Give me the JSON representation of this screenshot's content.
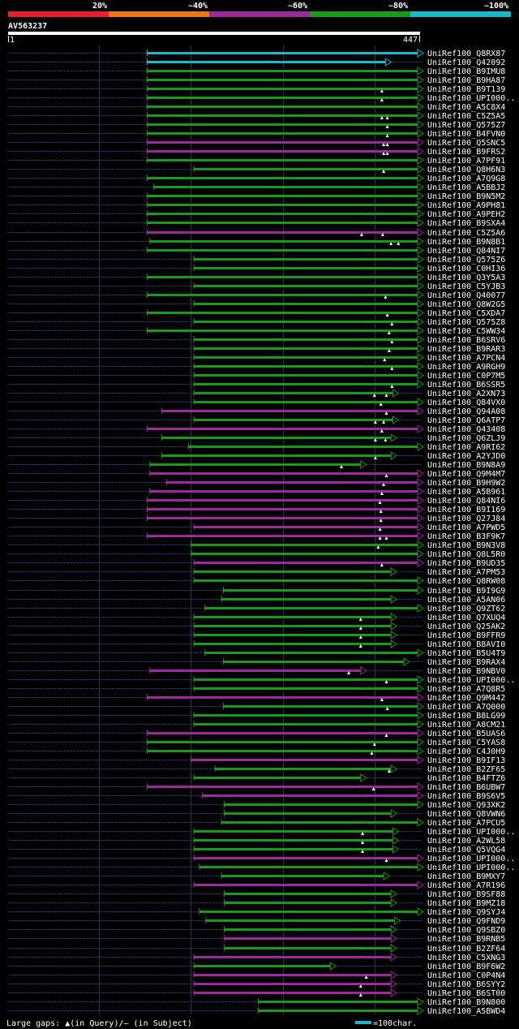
{
  "colors": {
    "background": "#000000",
    "identity_20": "#e8202a",
    "identity_40": "#e8781e",
    "identity_60": "#9b2b9b",
    "identity_80": "#1a9a1a",
    "identity_100": "#1ab8c8",
    "query_dashed": "#2a3570",
    "grid": "#1e3560",
    "text": "#ffffff"
  },
  "scale_labels": [
    "20%",
    "~40%",
    "~60%",
    "~80%",
    "~100%"
  ],
  "legend": {
    "gaps_text": "Large gaps: ▲(in Query)/— (in Subject)",
    "scale_text": "=100char."
  },
  "chart_data": {
    "type": "alignment-map",
    "title": "AV563237",
    "query_length": 447,
    "x_axis_labels": [
      "1",
      "447"
    ],
    "grid_positions": [
      100,
      200,
      300,
      400
    ],
    "hits": [
      {
        "id": "UniRef100_Q8RX87",
        "start": 152,
        "end": 447,
        "color": "cyan",
        "gaps": []
      },
      {
        "id": "UniRef100_Q42092",
        "start": 152,
        "end": 412,
        "color": "cyan",
        "gaps": []
      },
      {
        "id": "UniRef100_B9IMU8",
        "start": 152,
        "end": 447,
        "color": "green",
        "gaps": []
      },
      {
        "id": "UniRef100_B9HA87",
        "start": 152,
        "end": 447,
        "color": "green",
        "gaps": []
      },
      {
        "id": "UniRef100_B9T139",
        "start": 152,
        "end": 447,
        "color": "green",
        "gaps": [
          408
        ]
      },
      {
        "id": "UniRef100_UPI000..",
        "start": 152,
        "end": 447,
        "color": "green",
        "gaps": [
          408
        ]
      },
      {
        "id": "UniRef100_A5C8X4",
        "start": 152,
        "end": 447,
        "color": "green",
        "gaps": []
      },
      {
        "id": "UniRef100_C5Z5A5",
        "start": 152,
        "end": 447,
        "color": "green",
        "gaps": [
          408,
          414
        ]
      },
      {
        "id": "UniRef100_Q575Z7",
        "start": 152,
        "end": 447,
        "color": "green",
        "gaps": [
          414
        ]
      },
      {
        "id": "UniRef100_B4FVN0",
        "start": 152,
        "end": 447,
        "color": "green",
        "gaps": [
          414
        ]
      },
      {
        "id": "UniRef100_Q5SNC5",
        "start": 152,
        "end": 447,
        "color": "purple",
        "gaps": [
          410,
          414
        ]
      },
      {
        "id": "UniRef100_B9FRS2",
        "start": 152,
        "end": 447,
        "color": "purple",
        "gaps": [
          410,
          414
        ]
      },
      {
        "id": "UniRef100_A7PF91",
        "start": 152,
        "end": 447,
        "color": "green",
        "gaps": []
      },
      {
        "id": "UniRef100_Q8H6N3",
        "start": 203,
        "end": 447,
        "color": "green",
        "gaps": [
          410
        ]
      },
      {
        "id": "UniRef100_A7Q9G8",
        "start": 152,
        "end": 447,
        "color": "green",
        "gaps": []
      },
      {
        "id": "UniRef100_A5BBJ2",
        "start": 159,
        "end": 447,
        "color": "green",
        "gaps": []
      },
      {
        "id": "UniRef100_B9N5M2",
        "start": 152,
        "end": 447,
        "color": "green",
        "gaps": []
      },
      {
        "id": "UniRef100_A9PH81",
        "start": 152,
        "end": 447,
        "color": "green",
        "gaps": []
      },
      {
        "id": "UniRef100_A9PEH2",
        "start": 152,
        "end": 447,
        "color": "green",
        "gaps": []
      },
      {
        "id": "UniRef100_B9SXA4",
        "start": 152,
        "end": 447,
        "color": "green",
        "gaps": []
      },
      {
        "id": "UniRef100_C5Z5A6",
        "start": 152,
        "end": 447,
        "color": "purple",
        "gaps": [
          386,
          409
        ]
      },
      {
        "id": "UniRef100_B9N8B1",
        "start": 155,
        "end": 447,
        "color": "green",
        "gaps": [
          418,
          426
        ]
      },
      {
        "id": "UniRef100_Q84NI7",
        "start": 152,
        "end": 447,
        "color": "green",
        "gaps": []
      },
      {
        "id": "UniRef100_Q575Z6",
        "start": 203,
        "end": 447,
        "color": "green",
        "gaps": []
      },
      {
        "id": "UniRef100_C0HI36",
        "start": 203,
        "end": 447,
        "color": "green",
        "gaps": []
      },
      {
        "id": "UniRef100_Q3Y5A3",
        "start": 152,
        "end": 447,
        "color": "green",
        "gaps": []
      },
      {
        "id": "UniRef100_C5YJB3",
        "start": 203,
        "end": 447,
        "color": "green",
        "gaps": []
      },
      {
        "id": "UniRef100_Q40077",
        "start": 152,
        "end": 447,
        "color": "green",
        "gaps": [
          412
        ]
      },
      {
        "id": "UniRef100_Q8W2G5",
        "start": 203,
        "end": 447,
        "color": "green",
        "gaps": []
      },
      {
        "id": "UniRef100_C5XDA7",
        "start": 152,
        "end": 447,
        "color": "green",
        "gaps": [
          414
        ]
      },
      {
        "id": "UniRef100_Q575Z8",
        "start": 203,
        "end": 447,
        "color": "green",
        "gaps": [
          419
        ]
      },
      {
        "id": "UniRef100_C5WW34",
        "start": 152,
        "end": 447,
        "color": "green",
        "gaps": [
          416
        ]
      },
      {
        "id": "UniRef100_B6SRV6",
        "start": 203,
        "end": 447,
        "color": "green",
        "gaps": [
          419
        ]
      },
      {
        "id": "UniRef100_B9RAR3",
        "start": 203,
        "end": 447,
        "color": "green",
        "gaps": [
          416
        ]
      },
      {
        "id": "UniRef100_A7PCN4",
        "start": 203,
        "end": 447,
        "color": "green",
        "gaps": [
          411
        ]
      },
      {
        "id": "UniRef100_A9RGH9",
        "start": 203,
        "end": 447,
        "color": "green",
        "gaps": [
          419
        ]
      },
      {
        "id": "UniRef100_C0P7M5",
        "start": 203,
        "end": 447,
        "color": "green",
        "gaps": []
      },
      {
        "id": "UniRef100_B6SSR5",
        "start": 203,
        "end": 447,
        "color": "green",
        "gaps": [
          419
        ]
      },
      {
        "id": "UniRef100_A2XN73",
        "start": 203,
        "end": 420,
        "color": "green",
        "gaps": [
          400,
          413
        ]
      },
      {
        "id": "UniRef100_Q84VX0",
        "start": 203,
        "end": 447,
        "color": "green",
        "gaps": [
          407
        ]
      },
      {
        "id": "UniRef100_Q94A08",
        "start": 168,
        "end": 447,
        "color": "purple",
        "gaps": [
          413
        ]
      },
      {
        "id": "UniRef100_Q6ATP7",
        "start": 203,
        "end": 420,
        "color": "green",
        "gaps": [
          401,
          410
        ]
      },
      {
        "id": "UniRef100_Q43408",
        "start": 152,
        "end": 447,
        "color": "purple",
        "gaps": [
          408
        ]
      },
      {
        "id": "UniRef100_Q6ZLJ9",
        "start": 168,
        "end": 418,
        "color": "green",
        "gaps": [
          401,
          412
        ]
      },
      {
        "id": "UniRef100_A9RI62",
        "start": 197,
        "end": 447,
        "color": "green",
        "gaps": []
      },
      {
        "id": "UniRef100_A2YJD0",
        "start": 168,
        "end": 418,
        "color": "green",
        "gaps": [
          401
        ]
      },
      {
        "id": "UniRef100_B9N8A9",
        "start": 155,
        "end": 385,
        "color": "green",
        "gaps": [
          364
        ]
      },
      {
        "id": "UniRef100_Q9M4M7",
        "start": 155,
        "end": 447,
        "color": "purple",
        "gaps": [
          413
        ]
      },
      {
        "id": "UniRef100_B9H9W2",
        "start": 173,
        "end": 447,
        "color": "purple",
        "gaps": [
          410
        ]
      },
      {
        "id": "UniRef100_A5B961",
        "start": 155,
        "end": 447,
        "color": "purple",
        "gaps": [
          408
        ]
      },
      {
        "id": "UniRef100_Q84NI6",
        "start": 152,
        "end": 447,
        "color": "purple",
        "gaps": [
          406
        ]
      },
      {
        "id": "UniRef100_B9I169",
        "start": 152,
        "end": 447,
        "color": "purple",
        "gaps": [
          407
        ]
      },
      {
        "id": "UniRef100_Q27J84",
        "start": 152,
        "end": 447,
        "color": "purple",
        "gaps": [
          407
        ]
      },
      {
        "id": "UniRef100_A7PWD5",
        "start": 203,
        "end": 447,
        "color": "purple",
        "gaps": [
          406
        ]
      },
      {
        "id": "UniRef100_B3F9K7",
        "start": 152,
        "end": 447,
        "color": "purple",
        "gaps": [
          406,
          413
        ]
      },
      {
        "id": "UniRef100_B9N3V8",
        "start": 200,
        "end": 447,
        "color": "green",
        "gaps": [
          404
        ]
      },
      {
        "id": "UniRef100_Q8L5R0",
        "start": 200,
        "end": 447,
        "color": "green",
        "gaps": []
      },
      {
        "id": "UniRef100_B9UD35",
        "start": 203,
        "end": 447,
        "color": "purple",
        "gaps": [
          408
        ]
      },
      {
        "id": "UniRef100_A7PM53",
        "start": 203,
        "end": 418,
        "color": "green",
        "gaps": []
      },
      {
        "id": "UniRef100_Q8RW08",
        "start": 203,
        "end": 447,
        "color": "green",
        "gaps": []
      },
      {
        "id": "UniRef100_B9I9G9",
        "start": 235,
        "end": 447,
        "color": "green",
        "gaps": []
      },
      {
        "id": "UniRef100_A5AN06",
        "start": 233,
        "end": 418,
        "color": "green",
        "gaps": []
      },
      {
        "id": "UniRef100_Q9ZT62",
        "start": 215,
        "end": 447,
        "color": "green",
        "gaps": []
      },
      {
        "id": "UniRef100_Q7XUQ4",
        "start": 203,
        "end": 418,
        "color": "green",
        "gaps": [
          385
        ]
      },
      {
        "id": "UniRef100_Q25AK2",
        "start": 203,
        "end": 418,
        "color": "green",
        "gaps": [
          385
        ]
      },
      {
        "id": "UniRef100_B9FFR9",
        "start": 203,
        "end": 418,
        "color": "green",
        "gaps": [
          385
        ]
      },
      {
        "id": "UniRef100_B8AVI0",
        "start": 203,
        "end": 418,
        "color": "green",
        "gaps": [
          385
        ]
      },
      {
        "id": "UniRef100_B5U4T9",
        "start": 215,
        "end": 447,
        "color": "green",
        "gaps": []
      },
      {
        "id": "UniRef100_B9RAX4",
        "start": 235,
        "end": 432,
        "color": "green",
        "gaps": []
      },
      {
        "id": "UniRef100_B9NBV0",
        "start": 155,
        "end": 385,
        "color": "purple",
        "gaps": [
          372
        ]
      },
      {
        "id": "UniRef100_UPI000..",
        "start": 203,
        "end": 447,
        "color": "green",
        "gaps": [
          413
        ]
      },
      {
        "id": "UniRef100_A7Q8R5",
        "start": 203,
        "end": 447,
        "color": "green",
        "gaps": []
      },
      {
        "id": "UniRef100_Q9M442",
        "start": 152,
        "end": 447,
        "color": "purple",
        "gaps": [
          408
        ]
      },
      {
        "id": "UniRef100_A7Q000",
        "start": 235,
        "end": 447,
        "color": "green",
        "gaps": [
          414
        ]
      },
      {
        "id": "UniRef100_B8LG99",
        "start": 203,
        "end": 447,
        "color": "green",
        "gaps": []
      },
      {
        "id": "UniRef100_A8CM21",
        "start": 203,
        "end": 447,
        "color": "green",
        "gaps": []
      },
      {
        "id": "UniRef100_B5UAS6",
        "start": 152,
        "end": 447,
        "color": "purple",
        "gaps": [
          413
        ]
      },
      {
        "id": "UniRef100_C5YAS8",
        "start": 152,
        "end": 447,
        "color": "green",
        "gaps": [
          400
        ]
      },
      {
        "id": "UniRef100_C4J0H9",
        "start": 152,
        "end": 447,
        "color": "green",
        "gaps": [
          397
        ]
      },
      {
        "id": "UniRef100_B9IF13",
        "start": 200,
        "end": 447,
        "color": "purple",
        "gaps": []
      },
      {
        "id": "UniRef100_B2ZF65",
        "start": 226,
        "end": 418,
        "color": "green",
        "gaps": [
          416
        ]
      },
      {
        "id": "UniRef100_B4FTZ6",
        "start": 203,
        "end": 385,
        "color": "green",
        "gaps": []
      },
      {
        "id": "UniRef100_B6UBW7",
        "start": 152,
        "end": 447,
        "color": "purple",
        "gaps": [
          399
        ]
      },
      {
        "id": "UniRef100_B9S6V5",
        "start": 212,
        "end": 447,
        "color": "purple",
        "gaps": []
      },
      {
        "id": "UniRef100_Q93XK2",
        "start": 236,
        "end": 447,
        "color": "green",
        "gaps": []
      },
      {
        "id": "UniRef100_Q8VWN6",
        "start": 236,
        "end": 418,
        "color": "green",
        "gaps": []
      },
      {
        "id": "UniRef100_A7PCU5",
        "start": 233,
        "end": 447,
        "color": "green",
        "gaps": []
      },
      {
        "id": "UniRef100_UPI000..",
        "start": 203,
        "end": 420,
        "color": "green",
        "gaps": [
          387
        ]
      },
      {
        "id": "UniRef100_A2WL58",
        "start": 203,
        "end": 420,
        "color": "green",
        "gaps": [
          387
        ]
      },
      {
        "id": "UniRef100_Q5VQG4",
        "start": 203,
        "end": 420,
        "color": "green",
        "gaps": [
          387
        ]
      },
      {
        "id": "UniRef100_UPI000..",
        "start": 203,
        "end": 447,
        "color": "purple",
        "gaps": [
          413
        ]
      },
      {
        "id": "UniRef100_UPI000..",
        "start": 209,
        "end": 447,
        "color": "green",
        "gaps": []
      },
      {
        "id": "UniRef100_B9MXY7",
        "start": 233,
        "end": 410,
        "color": "green",
        "gaps": []
      },
      {
        "id": "UniRef100_A7R196",
        "start": 203,
        "end": 447,
        "color": "purple",
        "gaps": []
      },
      {
        "id": "UniRef100_B9SF88",
        "start": 236,
        "end": 418,
        "color": "green",
        "gaps": []
      },
      {
        "id": "UniRef100_B9MZ18",
        "start": 236,
        "end": 418,
        "color": "green",
        "gaps": []
      },
      {
        "id": "UniRef100_Q9SYJ4",
        "start": 209,
        "end": 447,
        "color": "green",
        "gaps": []
      },
      {
        "id": "UniRef100_Q9FND9",
        "start": 216,
        "end": 422,
        "color": "green",
        "gaps": []
      },
      {
        "id": "UniRef100_Q9SBZ0",
        "start": 236,
        "end": 418,
        "color": "green",
        "gaps": []
      },
      {
        "id": "UniRef100_B9RNB5",
        "start": 236,
        "end": 418,
        "color": "purple",
        "gaps": []
      },
      {
        "id": "UniRef100_B2ZF64",
        "start": 236,
        "end": 418,
        "color": "green",
        "gaps": []
      },
      {
        "id": "UniRef100_C5XNG3",
        "start": 203,
        "end": 418,
        "color": "purple",
        "gaps": []
      },
      {
        "id": "UniRef100_B9F6W2",
        "start": 203,
        "end": 352,
        "color": "green",
        "gaps": []
      },
      {
        "id": "UniRef100_C0P4N4",
        "start": 203,
        "end": 418,
        "color": "purple",
        "gaps": [
          391
        ]
      },
      {
        "id": "UniRef100_B6SYY2",
        "start": 203,
        "end": 418,
        "color": "purple",
        "gaps": [
          385
        ]
      },
      {
        "id": "UniRef100_B6ST00",
        "start": 203,
        "end": 418,
        "color": "purple",
        "gaps": [
          385
        ]
      },
      {
        "id": "UniRef100_B9N800",
        "start": 273,
        "end": 447,
        "color": "green",
        "gaps": []
      },
      {
        "id": "UniRef100_A5BWD4",
        "start": 273,
        "end": 447,
        "color": "green",
        "gaps": []
      }
    ]
  }
}
